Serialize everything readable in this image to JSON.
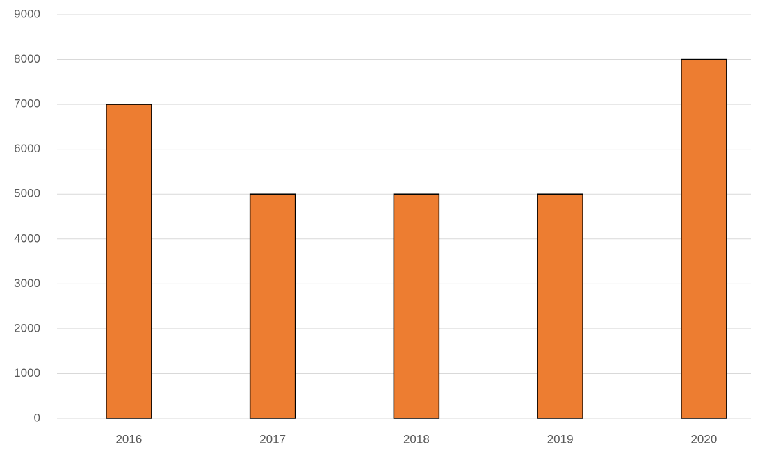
{
  "chart_data": {
    "type": "bar",
    "categories": [
      "2016",
      "2017",
      "2018",
      "2019",
      "2020"
    ],
    "values": [
      7000,
      5000,
      5000,
      5000,
      8000
    ],
    "color": "#ed7d31",
    "edgecolor": "#000000",
    "ylim": [
      0,
      9000
    ],
    "yticks": [
      0,
      1000,
      2000,
      3000,
      4000,
      5000,
      6000,
      7000,
      8000,
      9000
    ],
    "grid": true
  }
}
